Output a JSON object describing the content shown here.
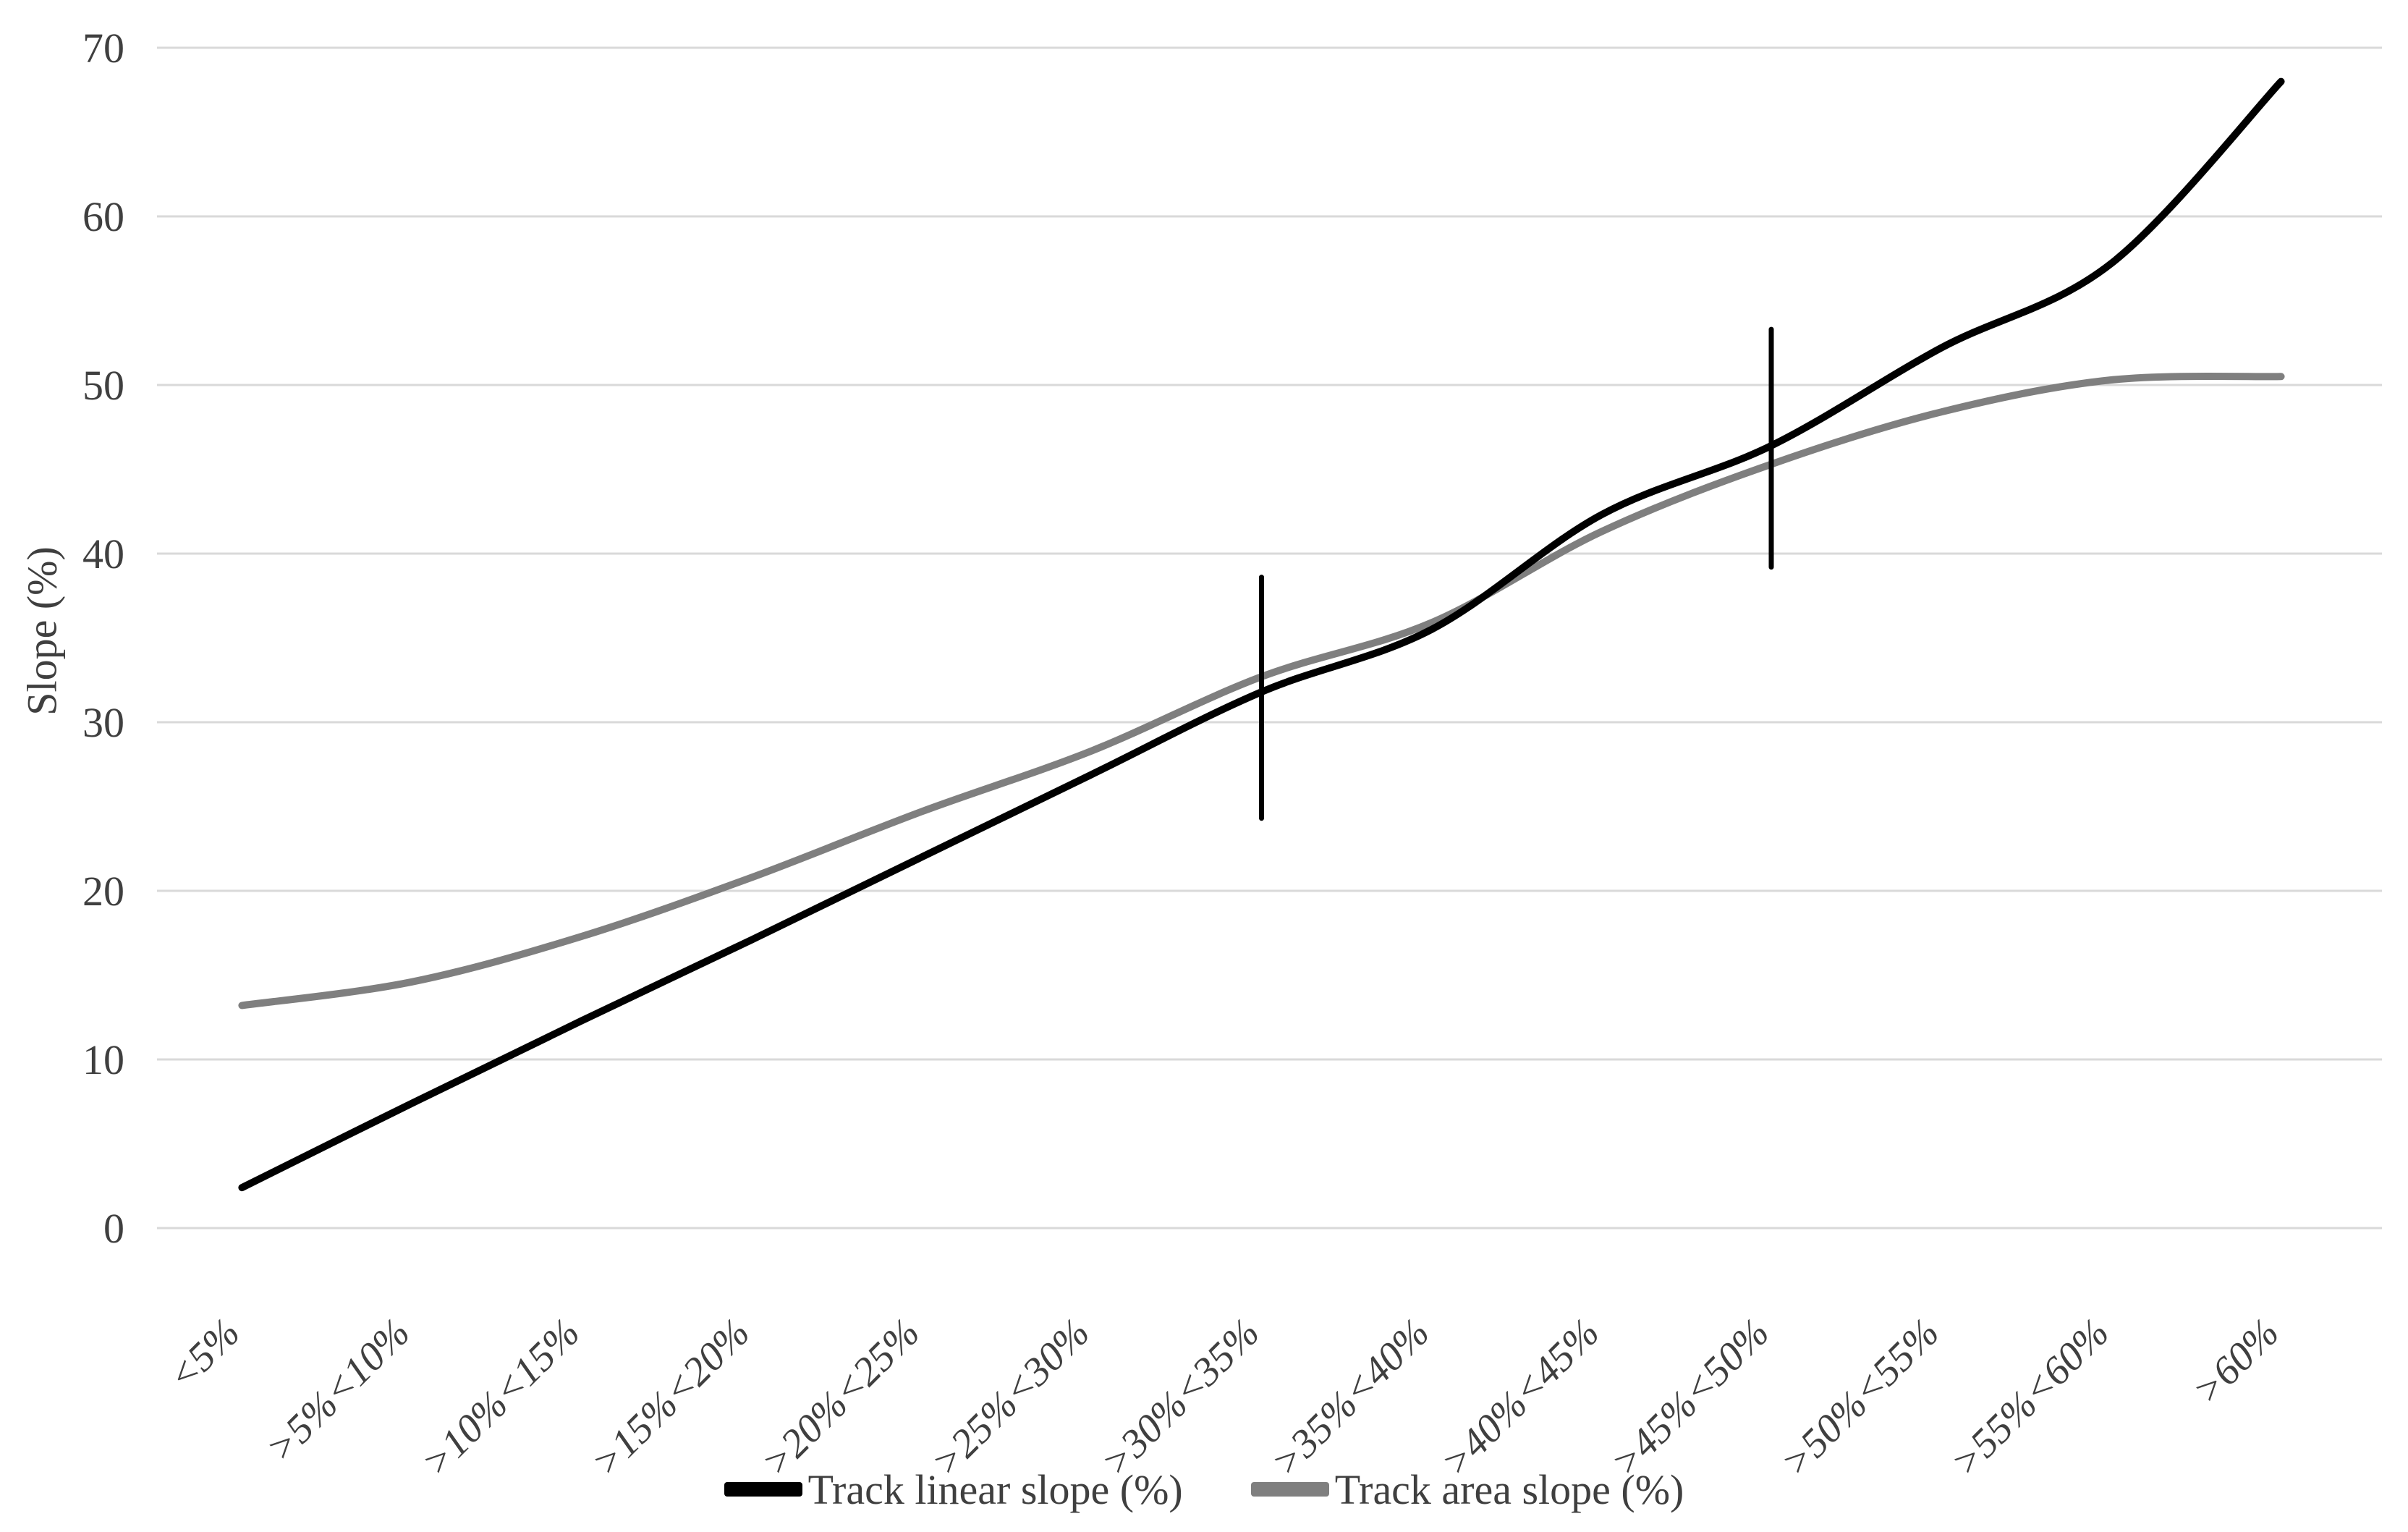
{
  "chart_data": {
    "type": "line",
    "title": "",
    "xlabel": "",
    "ylabel": "Slope (%)",
    "ylim": [
      0,
      70
    ],
    "yticks": [
      0,
      10,
      20,
      30,
      40,
      50,
      60,
      70
    ],
    "grid": "horizontal-only",
    "legend_position": "bottom-center",
    "categories": [
      "<5%",
      ">5%<10%",
      ">10%<15%",
      ">15%<20%",
      ">20%<25%",
      ">25%<30%",
      ">30%<35%",
      ">35%<40%",
      ">40%<45%",
      ">45%<50%",
      ">50%<55%",
      ">55%<60%",
      ">60%"
    ],
    "series": [
      {
        "name": "Track linear slope (%)",
        "color": "#000000",
        "smooth": true,
        "values": [
          2.4,
          7.4,
          12.3,
          17.1,
          22.0,
          26.9,
          31.8,
          35.5,
          42.3,
          46.4,
          52.2,
          57.2,
          68.0
        ]
      },
      {
        "name": "Track area slope (%)",
        "color": "#7f7f7f",
        "smooth": true,
        "values": [
          13.2,
          14.6,
          17.3,
          20.8,
          24.7,
          28.3,
          32.7,
          35.9,
          41.3,
          45.3,
          48.4,
          50.3,
          50.5
        ]
      }
    ],
    "error_bars": [
      {
        "category": ">30%<35%",
        "category_index": 6,
        "from": 24.3,
        "to": 38.6
      },
      {
        "category": ">45%<50%",
        "category_index": 9,
        "from": 39.2,
        "to": 53.3
      }
    ],
    "colors": {
      "gridline": "#d9d9d9",
      "tick_text": "#3f3f3f",
      "error_bar": "#000000",
      "background": "#ffffff"
    }
  }
}
